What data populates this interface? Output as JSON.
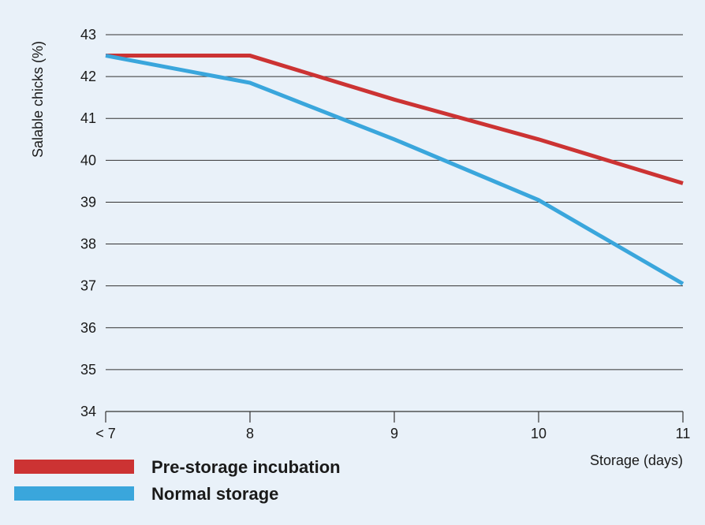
{
  "chart_data": {
    "type": "line",
    "title": "",
    "ylabel": "Salable chicks (%)",
    "xlabel": "Storage (days)",
    "categories": [
      "< 7",
      "8",
      "9",
      "10",
      "11"
    ],
    "ylim": [
      34,
      43
    ],
    "yticks": [
      34,
      35,
      36,
      37,
      38,
      39,
      40,
      41,
      42,
      43
    ],
    "grid": "horizontal",
    "legend_position": "bottom-left",
    "series": [
      {
        "name": "Pre-storage incubation",
        "color": "#cc3333",
        "values": [
          42.5,
          42.5,
          41.45,
          40.5,
          39.45
        ]
      },
      {
        "name": "Normal storage",
        "color": "#3aa6dc",
        "values": [
          42.5,
          41.85,
          40.5,
          39.05,
          37.05
        ]
      }
    ]
  }
}
